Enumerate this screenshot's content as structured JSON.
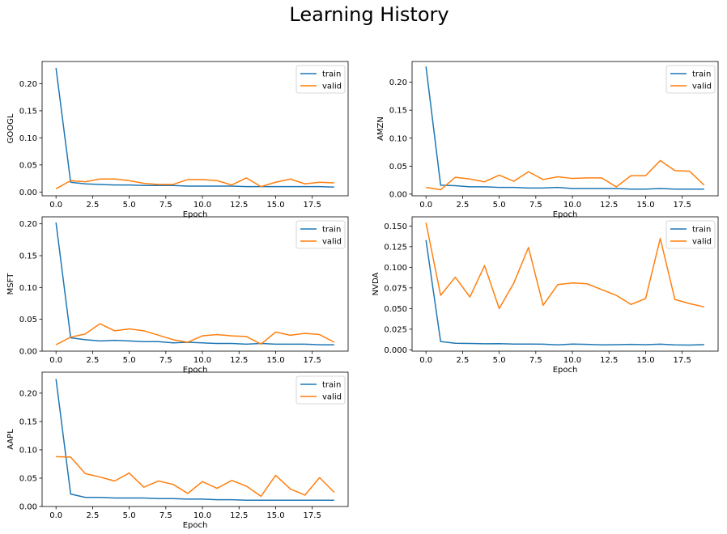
{
  "figure": {
    "title": "Learning History"
  },
  "colors": {
    "train": "#1f77b4",
    "valid": "#ff7f0e",
    "axes": "#000000"
  },
  "chart_data": [
    {
      "type": "line",
      "ylabel": "GOOGL",
      "xlabel": "Epoch",
      "xlim": [
        -0.95,
        19.95
      ],
      "ylim": [
        -0.007,
        0.241
      ],
      "xticks": [
        0.0,
        2.5,
        5.0,
        7.5,
        10.0,
        12.5,
        15.0,
        17.5
      ],
      "xtick_labels": [
        "0.0",
        "2.5",
        "5.0",
        "7.5",
        "10.0",
        "12.5",
        "15.0",
        "17.5"
      ],
      "yticks": [
        0.0,
        0.05,
        0.1,
        0.15,
        0.2
      ],
      "ytick_labels": [
        "0.00",
        "0.05",
        "0.10",
        "0.15",
        "0.20"
      ],
      "legend": "upper right",
      "x": [
        0,
        1,
        2,
        3,
        4,
        5,
        6,
        7,
        8,
        9,
        10,
        11,
        12,
        13,
        14,
        15,
        16,
        17,
        18,
        19
      ],
      "series": [
        {
          "name": "train",
          "values": [
            0.229,
            0.018,
            0.015,
            0.014,
            0.013,
            0.013,
            0.012,
            0.012,
            0.012,
            0.011,
            0.011,
            0.011,
            0.011,
            0.01,
            0.01,
            0.01,
            0.01,
            0.01,
            0.01,
            0.009
          ]
        },
        {
          "name": "valid",
          "values": [
            0.006,
            0.021,
            0.019,
            0.024,
            0.024,
            0.021,
            0.016,
            0.014,
            0.014,
            0.023,
            0.023,
            0.021,
            0.013,
            0.026,
            0.01,
            0.018,
            0.024,
            0.015,
            0.018,
            0.017
          ]
        }
      ]
    },
    {
      "type": "line",
      "ylabel": "AMZN",
      "xlabel": "Epoch",
      "xlim": [
        -0.95,
        19.95
      ],
      "ylim": [
        -0.003,
        0.237
      ],
      "xticks": [
        0.0,
        2.5,
        5.0,
        7.5,
        10.0,
        12.5,
        15.0,
        17.5
      ],
      "xtick_labels": [
        "0.0",
        "2.5",
        "5.0",
        "7.5",
        "10.0",
        "12.5",
        "15.0",
        "17.5"
      ],
      "yticks": [
        0.0,
        0.05,
        0.1,
        0.15,
        0.2
      ],
      "ytick_labels": [
        "0.00",
        "0.05",
        "0.10",
        "0.15",
        "0.20"
      ],
      "legend": "upper right",
      "x": [
        0,
        1,
        2,
        3,
        4,
        5,
        6,
        7,
        8,
        9,
        10,
        11,
        12,
        13,
        14,
        15,
        16,
        17,
        18,
        19
      ],
      "series": [
        {
          "name": "train",
          "values": [
            0.228,
            0.016,
            0.015,
            0.013,
            0.013,
            0.012,
            0.012,
            0.011,
            0.011,
            0.012,
            0.01,
            0.01,
            0.01,
            0.01,
            0.009,
            0.009,
            0.01,
            0.009,
            0.009,
            0.009
          ]
        },
        {
          "name": "valid",
          "values": [
            0.012,
            0.008,
            0.03,
            0.027,
            0.022,
            0.034,
            0.023,
            0.04,
            0.026,
            0.031,
            0.028,
            0.029,
            0.029,
            0.013,
            0.033,
            0.033,
            0.06,
            0.042,
            0.041,
            0.016
          ]
        }
      ]
    },
    {
      "type": "line",
      "ylabel": "MSFT",
      "xlabel": "Epoch",
      "xlim": [
        -0.95,
        19.95
      ],
      "ylim": [
        0.0,
        0.211
      ],
      "xticks": [
        0.0,
        2.5,
        5.0,
        7.5,
        10.0,
        12.5,
        15.0,
        17.5
      ],
      "xtick_labels": [
        "0.0",
        "2.5",
        "5.0",
        "7.5",
        "10.0",
        "12.5",
        "15.0",
        "17.5"
      ],
      "yticks": [
        0.0,
        0.05,
        0.1,
        0.15,
        0.2
      ],
      "ytick_labels": [
        "0.00",
        "0.05",
        "0.10",
        "0.15",
        "0.20"
      ],
      "legend": "upper right",
      "x": [
        0,
        1,
        2,
        3,
        4,
        5,
        6,
        7,
        8,
        9,
        10,
        11,
        12,
        13,
        14,
        15,
        16,
        17,
        18,
        19
      ],
      "series": [
        {
          "name": "train",
          "values": [
            0.202,
            0.021,
            0.018,
            0.016,
            0.017,
            0.016,
            0.015,
            0.015,
            0.013,
            0.014,
            0.013,
            0.012,
            0.012,
            0.011,
            0.012,
            0.011,
            0.011,
            0.011,
            0.01,
            0.01
          ]
        },
        {
          "name": "valid",
          "values": [
            0.01,
            0.022,
            0.027,
            0.043,
            0.032,
            0.035,
            0.032,
            0.025,
            0.018,
            0.014,
            0.024,
            0.026,
            0.024,
            0.023,
            0.011,
            0.03,
            0.025,
            0.028,
            0.026,
            0.014
          ]
        }
      ]
    },
    {
      "type": "line",
      "ylabel": "NVDA",
      "xlabel": "Epoch",
      "xlim": [
        -0.95,
        19.95
      ],
      "ylim": [
        -0.0016,
        0.1611
      ],
      "xticks": [
        0.0,
        2.5,
        5.0,
        7.5,
        10.0,
        12.5,
        15.0,
        17.5
      ],
      "xtick_labels": [
        "0.0",
        "2.5",
        "5.0",
        "7.5",
        "10.0",
        "12.5",
        "15.0",
        "17.5"
      ],
      "yticks": [
        0.0,
        0.025,
        0.05,
        0.075,
        0.1,
        0.125,
        0.15
      ],
      "ytick_labels": [
        "0.000",
        "0.025",
        "0.050",
        "0.075",
        "0.100",
        "0.125",
        "0.150"
      ],
      "legend": "upper right",
      "x": [
        0,
        1,
        2,
        3,
        4,
        5,
        6,
        7,
        8,
        9,
        10,
        11,
        12,
        13,
        14,
        15,
        16,
        17,
        18,
        19
      ],
      "series": [
        {
          "name": "train",
          "values": [
            0.133,
            0.01,
            0.008,
            0.0077,
            0.0074,
            0.0075,
            0.007,
            0.007,
            0.0068,
            0.006,
            0.007,
            0.0066,
            0.006,
            0.0062,
            0.0066,
            0.0063,
            0.0068,
            0.006,
            0.0058,
            0.0064
          ]
        },
        {
          "name": "valid",
          "values": [
            0.154,
            0.066,
            0.088,
            0.064,
            0.102,
            0.05,
            0.081,
            0.124,
            0.054,
            0.079,
            0.081,
            0.08,
            0.073,
            0.066,
            0.055,
            0.062,
            0.135,
            0.061,
            0.056,
            0.052
          ]
        }
      ]
    },
    {
      "type": "line",
      "ylabel": "AAPL",
      "xlabel": "Epoch",
      "xlim": [
        -0.95,
        19.95
      ],
      "ylim": [
        0.0,
        0.237
      ],
      "xticks": [
        0.0,
        2.5,
        5.0,
        7.5,
        10.0,
        12.5,
        15.0,
        17.5
      ],
      "xtick_labels": [
        "0.0",
        "2.5",
        "5.0",
        "7.5",
        "10.0",
        "12.5",
        "15.0",
        "17.5"
      ],
      "yticks": [
        0.0,
        0.05,
        0.1,
        0.15,
        0.2
      ],
      "ytick_labels": [
        "0.00",
        "0.05",
        "0.10",
        "0.15",
        "0.20"
      ],
      "legend": "upper right",
      "x": [
        0,
        1,
        2,
        3,
        4,
        5,
        6,
        7,
        8,
        9,
        10,
        11,
        12,
        13,
        14,
        15,
        16,
        17,
        18,
        19
      ],
      "series": [
        {
          "name": "train",
          "values": [
            0.225,
            0.022,
            0.016,
            0.016,
            0.015,
            0.015,
            0.015,
            0.014,
            0.014,
            0.013,
            0.013,
            0.012,
            0.012,
            0.011,
            0.011,
            0.011,
            0.011,
            0.011,
            0.011,
            0.011
          ]
        },
        {
          "name": "valid",
          "values": [
            0.088,
            0.087,
            0.058,
            0.052,
            0.045,
            0.059,
            0.034,
            0.045,
            0.039,
            0.023,
            0.044,
            0.032,
            0.046,
            0.036,
            0.018,
            0.055,
            0.031,
            0.02,
            0.051,
            0.025
          ]
        }
      ]
    }
  ]
}
